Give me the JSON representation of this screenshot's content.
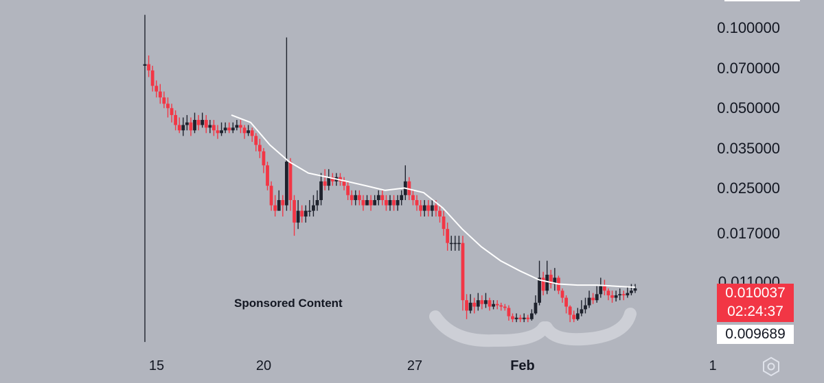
{
  "chart_data": {
    "type": "candlestick",
    "y_scale": "log",
    "ylim": [
      0.0058,
      0.125
    ],
    "y_ticks": [
      "0.100000",
      "0.070000",
      "0.050000",
      "0.035000",
      "0.025000",
      "0.017000",
      "0.011000"
    ],
    "x_ticks": [
      "15",
      "20",
      "27",
      "Feb",
      "1"
    ],
    "current_price": "0.010037",
    "countdown": "02:24:37",
    "ma_value": "0.009689",
    "annotation": "Sponsored Content",
    "colors": {
      "up": "#1e222d",
      "down": "#f23645",
      "ma": "#ffffff",
      "background": "#b2b5be"
    },
    "ma_line": [
      0.047,
      0.044,
      0.036,
      0.031,
      0.028,
      0.027,
      0.026,
      0.025,
      0.024,
      0.0245,
      0.0235,
      0.0205,
      0.017,
      0.0145,
      0.0128,
      0.0117,
      0.0108,
      0.0104,
      0.0103,
      0.0103,
      0.0102,
      0.0101
    ],
    "candles": [
      [
        0.073,
        0.074,
        0.115,
        0.0062
      ],
      [
        0.074,
        0.07,
        0.08,
        0.066
      ],
      [
        0.07,
        0.061,
        0.073,
        0.058
      ],
      [
        0.061,
        0.058,
        0.064,
        0.055
      ],
      [
        0.058,
        0.055,
        0.062,
        0.052
      ],
      [
        0.055,
        0.052,
        0.058,
        0.05
      ],
      [
        0.052,
        0.05,
        0.055,
        0.046
      ],
      [
        0.05,
        0.047,
        0.052,
        0.044
      ],
      [
        0.047,
        0.043,
        0.049,
        0.041
      ],
      [
        0.043,
        0.041,
        0.046,
        0.04
      ],
      [
        0.041,
        0.043,
        0.046,
        0.039
      ],
      [
        0.043,
        0.044,
        0.047,
        0.041
      ],
      [
        0.044,
        0.041,
        0.046,
        0.039
      ],
      [
        0.041,
        0.045,
        0.048,
        0.04
      ],
      [
        0.045,
        0.043,
        0.047,
        0.041
      ],
      [
        0.043,
        0.045,
        0.048,
        0.042
      ],
      [
        0.045,
        0.042,
        0.047,
        0.04
      ],
      [
        0.042,
        0.043,
        0.045,
        0.04
      ],
      [
        0.043,
        0.041,
        0.045,
        0.039
      ],
      [
        0.041,
        0.04,
        0.043,
        0.038
      ],
      [
        0.04,
        0.041,
        0.044,
        0.039
      ],
      [
        0.041,
        0.042,
        0.044,
        0.04
      ],
      [
        0.042,
        0.041,
        0.044,
        0.04
      ],
      [
        0.041,
        0.042,
        0.044,
        0.04
      ],
      [
        0.042,
        0.043,
        0.045,
        0.041
      ],
      [
        0.043,
        0.042,
        0.045,
        0.04
      ],
      [
        0.042,
        0.04,
        0.043,
        0.038
      ],
      [
        0.04,
        0.041,
        0.043,
        0.039
      ],
      [
        0.041,
        0.039,
        0.042,
        0.037
      ],
      [
        0.039,
        0.036,
        0.04,
        0.034
      ],
      [
        0.036,
        0.034,
        0.038,
        0.032
      ],
      [
        0.034,
        0.03,
        0.035,
        0.028
      ],
      [
        0.03,
        0.025,
        0.031,
        0.024
      ],
      [
        0.025,
        0.021,
        0.026,
        0.02
      ],
      [
        0.021,
        0.02,
        0.023,
        0.019
      ],
      [
        0.02,
        0.022,
        0.024,
        0.02
      ],
      [
        0.022,
        0.021,
        0.023,
        0.019
      ],
      [
        0.021,
        0.031,
        0.094,
        0.02
      ],
      [
        0.031,
        0.022,
        0.032,
        0.02
      ],
      [
        0.022,
        0.018,
        0.023,
        0.016
      ],
      [
        0.018,
        0.02,
        0.022,
        0.017
      ],
      [
        0.02,
        0.019,
        0.021,
        0.018
      ],
      [
        0.019,
        0.02,
        0.021,
        0.018
      ],
      [
        0.02,
        0.02,
        0.022,
        0.019
      ],
      [
        0.02,
        0.021,
        0.023,
        0.019
      ],
      [
        0.021,
        0.022,
        0.024,
        0.02
      ],
      [
        0.022,
        0.026,
        0.028,
        0.021
      ],
      [
        0.026,
        0.025,
        0.029,
        0.024
      ],
      [
        0.025,
        0.027,
        0.029,
        0.024
      ],
      [
        0.027,
        0.026,
        0.028,
        0.025
      ],
      [
        0.026,
        0.027,
        0.028,
        0.025
      ],
      [
        0.027,
        0.026,
        0.028,
        0.025
      ],
      [
        0.026,
        0.025,
        0.027,
        0.024
      ],
      [
        0.025,
        0.023,
        0.026,
        0.022
      ],
      [
        0.023,
        0.022,
        0.024,
        0.021
      ],
      [
        0.022,
        0.023,
        0.024,
        0.021
      ],
      [
        0.023,
        0.022,
        0.024,
        0.021
      ],
      [
        0.022,
        0.021,
        0.023,
        0.02
      ],
      [
        0.021,
        0.022,
        0.023,
        0.021
      ],
      [
        0.022,
        0.021,
        0.023,
        0.02
      ],
      [
        0.021,
        0.022,
        0.023,
        0.021
      ],
      [
        0.022,
        0.023,
        0.024,
        0.021
      ],
      [
        0.023,
        0.022,
        0.024,
        0.021
      ],
      [
        0.022,
        0.021,
        0.023,
        0.02
      ],
      [
        0.021,
        0.022,
        0.023,
        0.02
      ],
      [
        0.022,
        0.021,
        0.023,
        0.02
      ],
      [
        0.021,
        0.022,
        0.023,
        0.02
      ],
      [
        0.022,
        0.023,
        0.024,
        0.021
      ],
      [
        0.023,
        0.026,
        0.03,
        0.022
      ],
      [
        0.026,
        0.023,
        0.027,
        0.022
      ],
      [
        0.023,
        0.022,
        0.024,
        0.021
      ],
      [
        0.022,
        0.021,
        0.023,
        0.02
      ],
      [
        0.021,
        0.02,
        0.022,
        0.019
      ],
      [
        0.02,
        0.021,
        0.022,
        0.019
      ],
      [
        0.021,
        0.02,
        0.022,
        0.019
      ],
      [
        0.02,
        0.021,
        0.022,
        0.019
      ],
      [
        0.021,
        0.02,
        0.022,
        0.019
      ],
      [
        0.02,
        0.019,
        0.021,
        0.018
      ],
      [
        0.019,
        0.017,
        0.02,
        0.016
      ],
      [
        0.017,
        0.015,
        0.018,
        0.014
      ],
      [
        0.015,
        0.015,
        0.016,
        0.014
      ],
      [
        0.015,
        0.015,
        0.016,
        0.014
      ],
      [
        0.015,
        0.015,
        0.016,
        0.014
      ],
      [
        0.015,
        0.009,
        0.016,
        0.0082
      ],
      [
        0.009,
        0.0082,
        0.0095,
        0.0076
      ],
      [
        0.0082,
        0.0088,
        0.0095,
        0.008
      ],
      [
        0.0088,
        0.0085,
        0.0092,
        0.008
      ],
      [
        0.0085,
        0.009,
        0.0096,
        0.0082
      ],
      [
        0.009,
        0.0087,
        0.0094,
        0.0083
      ],
      [
        0.0087,
        0.009,
        0.0096,
        0.0084
      ],
      [
        0.009,
        0.0085,
        0.0092,
        0.0082
      ],
      [
        0.0085,
        0.0087,
        0.009,
        0.0083
      ],
      [
        0.0087,
        0.0086,
        0.009,
        0.0083
      ],
      [
        0.0086,
        0.0085,
        0.0088,
        0.0082
      ],
      [
        0.0085,
        0.0084,
        0.0087,
        0.0082
      ],
      [
        0.0084,
        0.0078,
        0.0086,
        0.0075
      ],
      [
        0.0078,
        0.0076,
        0.008,
        0.0074
      ],
      [
        0.0076,
        0.0077,
        0.008,
        0.0074
      ],
      [
        0.0077,
        0.0076,
        0.0079,
        0.0074
      ],
      [
        0.0076,
        0.0077,
        0.008,
        0.0074
      ],
      [
        0.0077,
        0.0076,
        0.0079,
        0.0074
      ],
      [
        0.0076,
        0.008,
        0.0083,
        0.0075
      ],
      [
        0.008,
        0.0088,
        0.0094,
        0.0079
      ],
      [
        0.0088,
        0.011,
        0.0128,
        0.0086
      ],
      [
        0.011,
        0.0098,
        0.0116,
        0.0094
      ],
      [
        0.0098,
        0.0113,
        0.0128,
        0.0095
      ],
      [
        0.0113,
        0.0104,
        0.0118,
        0.01
      ],
      [
        0.0104,
        0.011,
        0.012,
        0.0098
      ],
      [
        0.011,
        0.0098,
        0.0112,
        0.0095
      ],
      [
        0.0098,
        0.0092,
        0.01,
        0.0088
      ],
      [
        0.0092,
        0.0085,
        0.0094,
        0.008
      ],
      [
        0.0085,
        0.0079,
        0.0086,
        0.0074
      ],
      [
        0.0079,
        0.0076,
        0.0082,
        0.0074
      ],
      [
        0.0076,
        0.008,
        0.0084,
        0.0075
      ],
      [
        0.008,
        0.0083,
        0.009,
        0.0078
      ],
      [
        0.0083,
        0.0086,
        0.0092,
        0.008
      ],
      [
        0.0086,
        0.0092,
        0.0098,
        0.0084
      ],
      [
        0.0092,
        0.009,
        0.0096,
        0.0087
      ],
      [
        0.009,
        0.0095,
        0.0102,
        0.0088
      ],
      [
        0.0095,
        0.0102,
        0.011,
        0.0092
      ],
      [
        0.0102,
        0.0098,
        0.0108,
        0.0094
      ],
      [
        0.0098,
        0.0094,
        0.01,
        0.009
      ],
      [
        0.0094,
        0.0092,
        0.0098,
        0.0088
      ],
      [
        0.0092,
        0.0094,
        0.0098,
        0.0089
      ],
      [
        0.0094,
        0.0095,
        0.01,
        0.009
      ],
      [
        0.0095,
        0.0094,
        0.0098,
        0.009
      ],
      [
        0.0094,
        0.0096,
        0.0102,
        0.0092
      ],
      [
        0.0096,
        0.0098,
        0.0104,
        0.0094
      ],
      [
        0.0098,
        0.01,
        0.0104,
        0.0096
      ]
    ]
  }
}
